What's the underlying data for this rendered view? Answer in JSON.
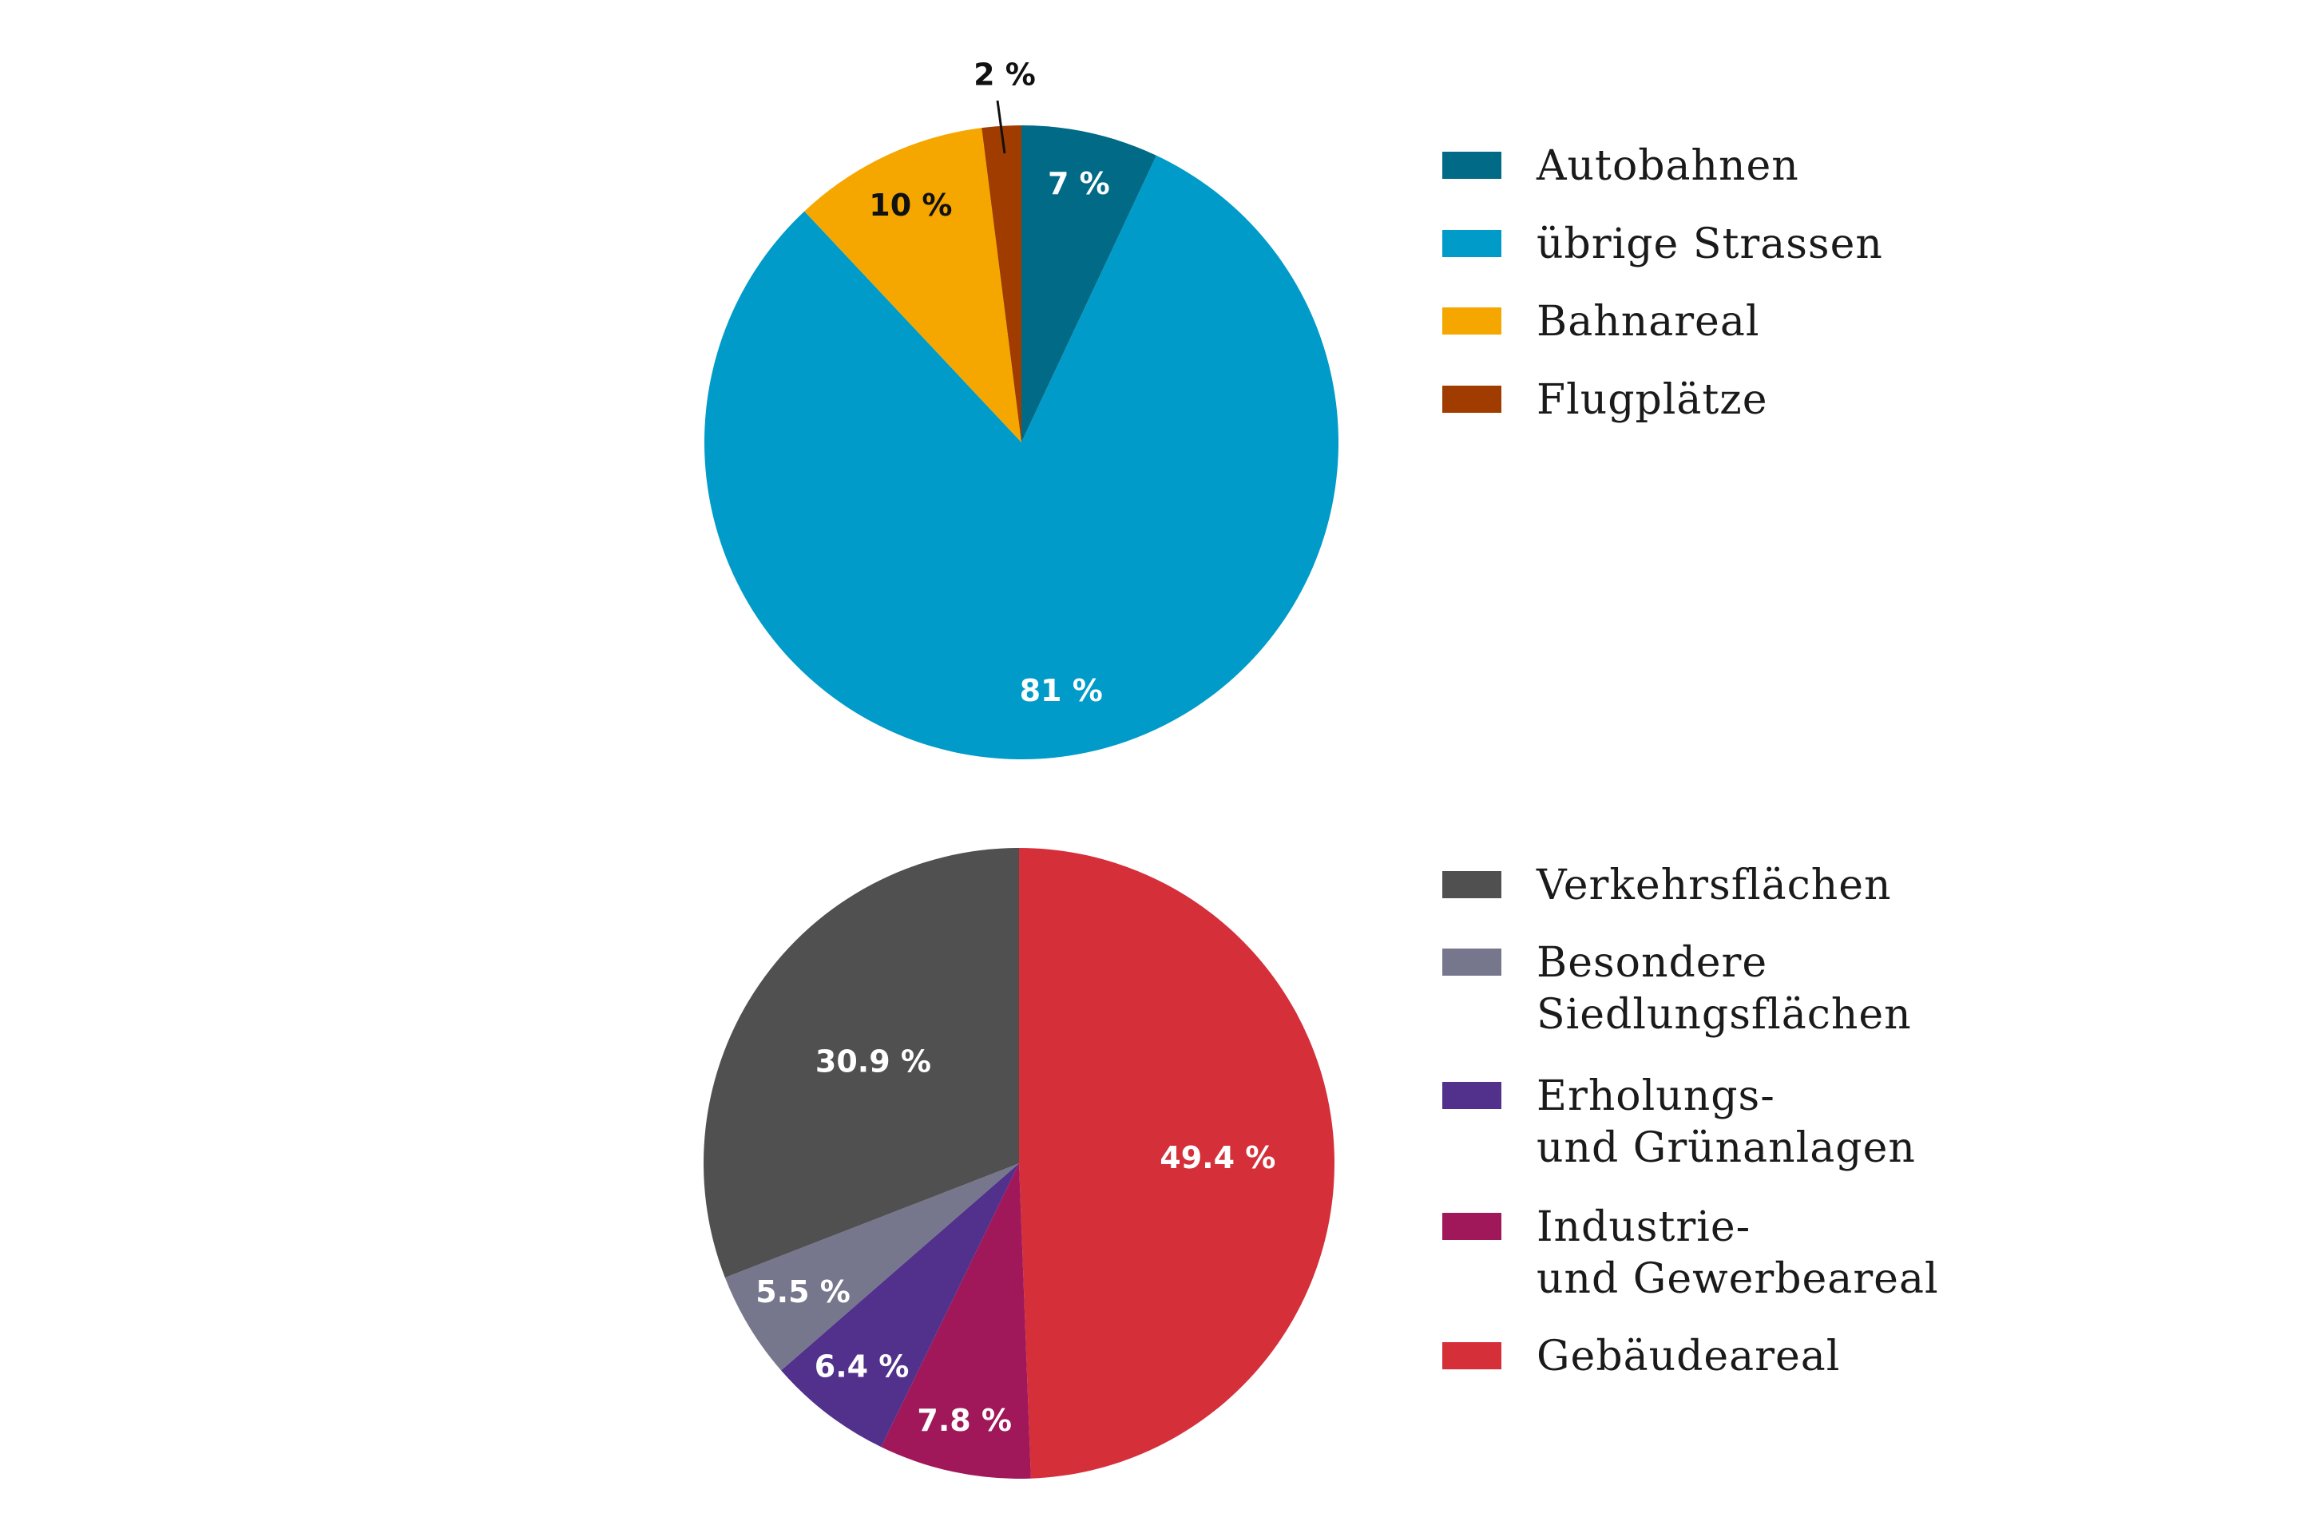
{
  "chart_data": [
    {
      "type": "pie",
      "start": "top, clockwise",
      "legend_position": "right",
      "slices": [
        {
          "name": "Autobahnen",
          "legend_lines": [
            "Autobahnen"
          ],
          "value": 7,
          "label": "7 %",
          "color": "#006a87",
          "label_color": "#ffffff"
        },
        {
          "name": "übrige Strassen",
          "legend_lines": [
            "übrige Strassen"
          ],
          "value": 81,
          "label": "81 %",
          "color": "#009bc8",
          "label_color": "#ffffff"
        },
        {
          "name": "Bahnareal",
          "legend_lines": [
            "Bahnareal"
          ],
          "value": 10,
          "label": "10 %",
          "color": "#f5a700",
          "label_color": "#111111"
        },
        {
          "name": "Flugplätze",
          "legend_lines": [
            "Flugplätze"
          ],
          "value": 2,
          "label": "2 %",
          "color": "#a03c00",
          "label_color": "#111111"
        }
      ]
    },
    {
      "type": "pie",
      "start": "top, clockwise",
      "legend_position": "right",
      "slices": [
        {
          "name": "Gebäudeareal",
          "legend_lines": [
            "Gebäudeareal"
          ],
          "value": 49.4,
          "label": "49.4 %",
          "color": "#d52f3a",
          "label_color": "#ffffff"
        },
        {
          "name": "Industrie- und Gewerbeareal",
          "legend_lines": [
            "Industrie-",
            "und Gewerbeareal"
          ],
          "value": 7.8,
          "label": "7.8 %",
          "color": "#a0175a",
          "label_color": "#ffffff"
        },
        {
          "name": "Erholungs- und Grünanlagen",
          "legend_lines": [
            "Erholungs-",
            "und Grünanlagen"
          ],
          "value": 6.4,
          "label": "6.4 %",
          "color": "#51318c",
          "label_color": "#ffffff"
        },
        {
          "name": "Besondere Siedlungsflächen",
          "legend_lines": [
            "Besondere",
            "Siedlungsflächen"
          ],
          "value": 5.5,
          "label": "5.5 %",
          "color": "#76778c",
          "label_color": "#ffffff"
        },
        {
          "name": "Verkehrsflächen",
          "legend_lines": [
            "Verkehrsflächen"
          ],
          "value": 30.9,
          "label": "30.9 %",
          "color": "#505050",
          "label_color": "#ffffff"
        }
      ],
      "legend_order": [
        "Verkehrsflächen",
        "Besondere Siedlungsflächen",
        "Erholungs- und Grünanlagen",
        "Industrie- und Gewerbeareal",
        "Gebäudeareal"
      ]
    }
  ]
}
